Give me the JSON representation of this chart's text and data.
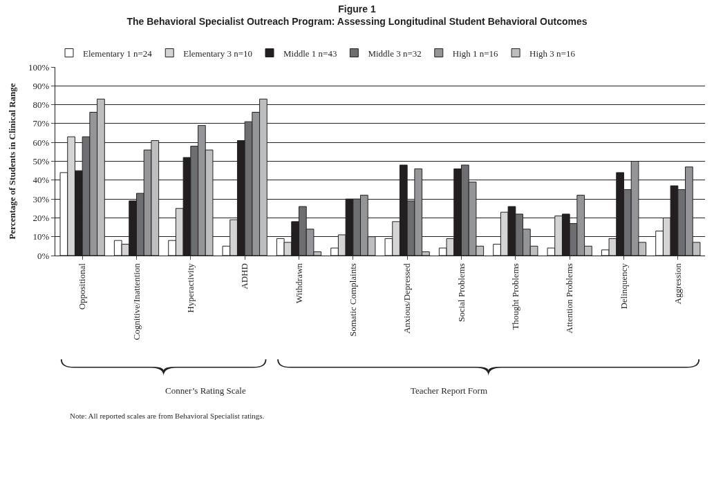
{
  "chart_data": {
    "type": "bar",
    "title": "Figure 1",
    "subtitle": "The Behavioral Specialist Outreach Program: Assessing Longitudinal Student Behavioral Outcomes",
    "ylabel": "Percentage of Students in Clinical Range",
    "categories": [
      "Oppositional",
      "Cognitive/Inattention",
      "Hyperactivity",
      "ADHD",
      "Withdrawn",
      "Somatic Complaints",
      "Anxious/Depressed",
      "Social Problems",
      "Thought Problems",
      "Attention Problems",
      "Delinquency",
      "Aggression"
    ],
    "series": [
      {
        "name": "Elementary 1 n=24",
        "color": "#ffffff",
        "values": [
          44,
          8,
          8,
          5,
          9,
          4,
          9,
          4,
          6,
          4,
          3,
          13
        ]
      },
      {
        "name": "Elementary 3 n=10",
        "color": "#d4d4d4",
        "values": [
          63,
          6,
          25,
          19,
          7,
          11,
          18,
          9,
          23,
          21,
          9,
          20
        ]
      },
      {
        "name": "Middle 1 n=43",
        "color": "#231f20",
        "values": [
          45,
          29,
          52,
          61,
          18,
          30,
          48,
          46,
          26,
          22,
          44,
          37
        ]
      },
      {
        "name": "Middle 3 n=32",
        "color": "#6d6e71",
        "values": [
          63,
          33,
          58,
          71,
          26,
          30,
          29,
          48,
          22,
          17,
          35,
          35
        ]
      },
      {
        "name": "High 1 n=16",
        "color": "#939598",
        "values": [
          76,
          56,
          69,
          76,
          14,
          32,
          46,
          39,
          14,
          32,
          50,
          47
        ]
      },
      {
        "name": "High 3 n=16",
        "color": "#bcbec0",
        "values": [
          83,
          61,
          56,
          83,
          2,
          10,
          2,
          5,
          5,
          5,
          7,
          7
        ]
      }
    ],
    "ylim": [
      0,
      100
    ],
    "yticks": [
      {
        "value": 0,
        "label": "0%"
      },
      {
        "value": 10,
        "label": "10%"
      },
      {
        "value": 20,
        "label": "20%"
      },
      {
        "value": 30,
        "label": "30%"
      },
      {
        "value": 40,
        "label": "40%"
      },
      {
        "value": 50,
        "label": "50%"
      },
      {
        "value": 60,
        "label": "60%"
      },
      {
        "value": 70,
        "label": "70%"
      },
      {
        "value": 80,
        "label": "80%"
      },
      {
        "value": 90,
        "label": "90%"
      },
      {
        "value": 100,
        "label": "100%"
      }
    ],
    "grid": "y",
    "legend": "top",
    "annotations": [
      "Conner’s Rating Scale",
      "Teacher Report Form",
      "Note: All reported scales are from Behavioral Specialist ratings."
    ]
  }
}
